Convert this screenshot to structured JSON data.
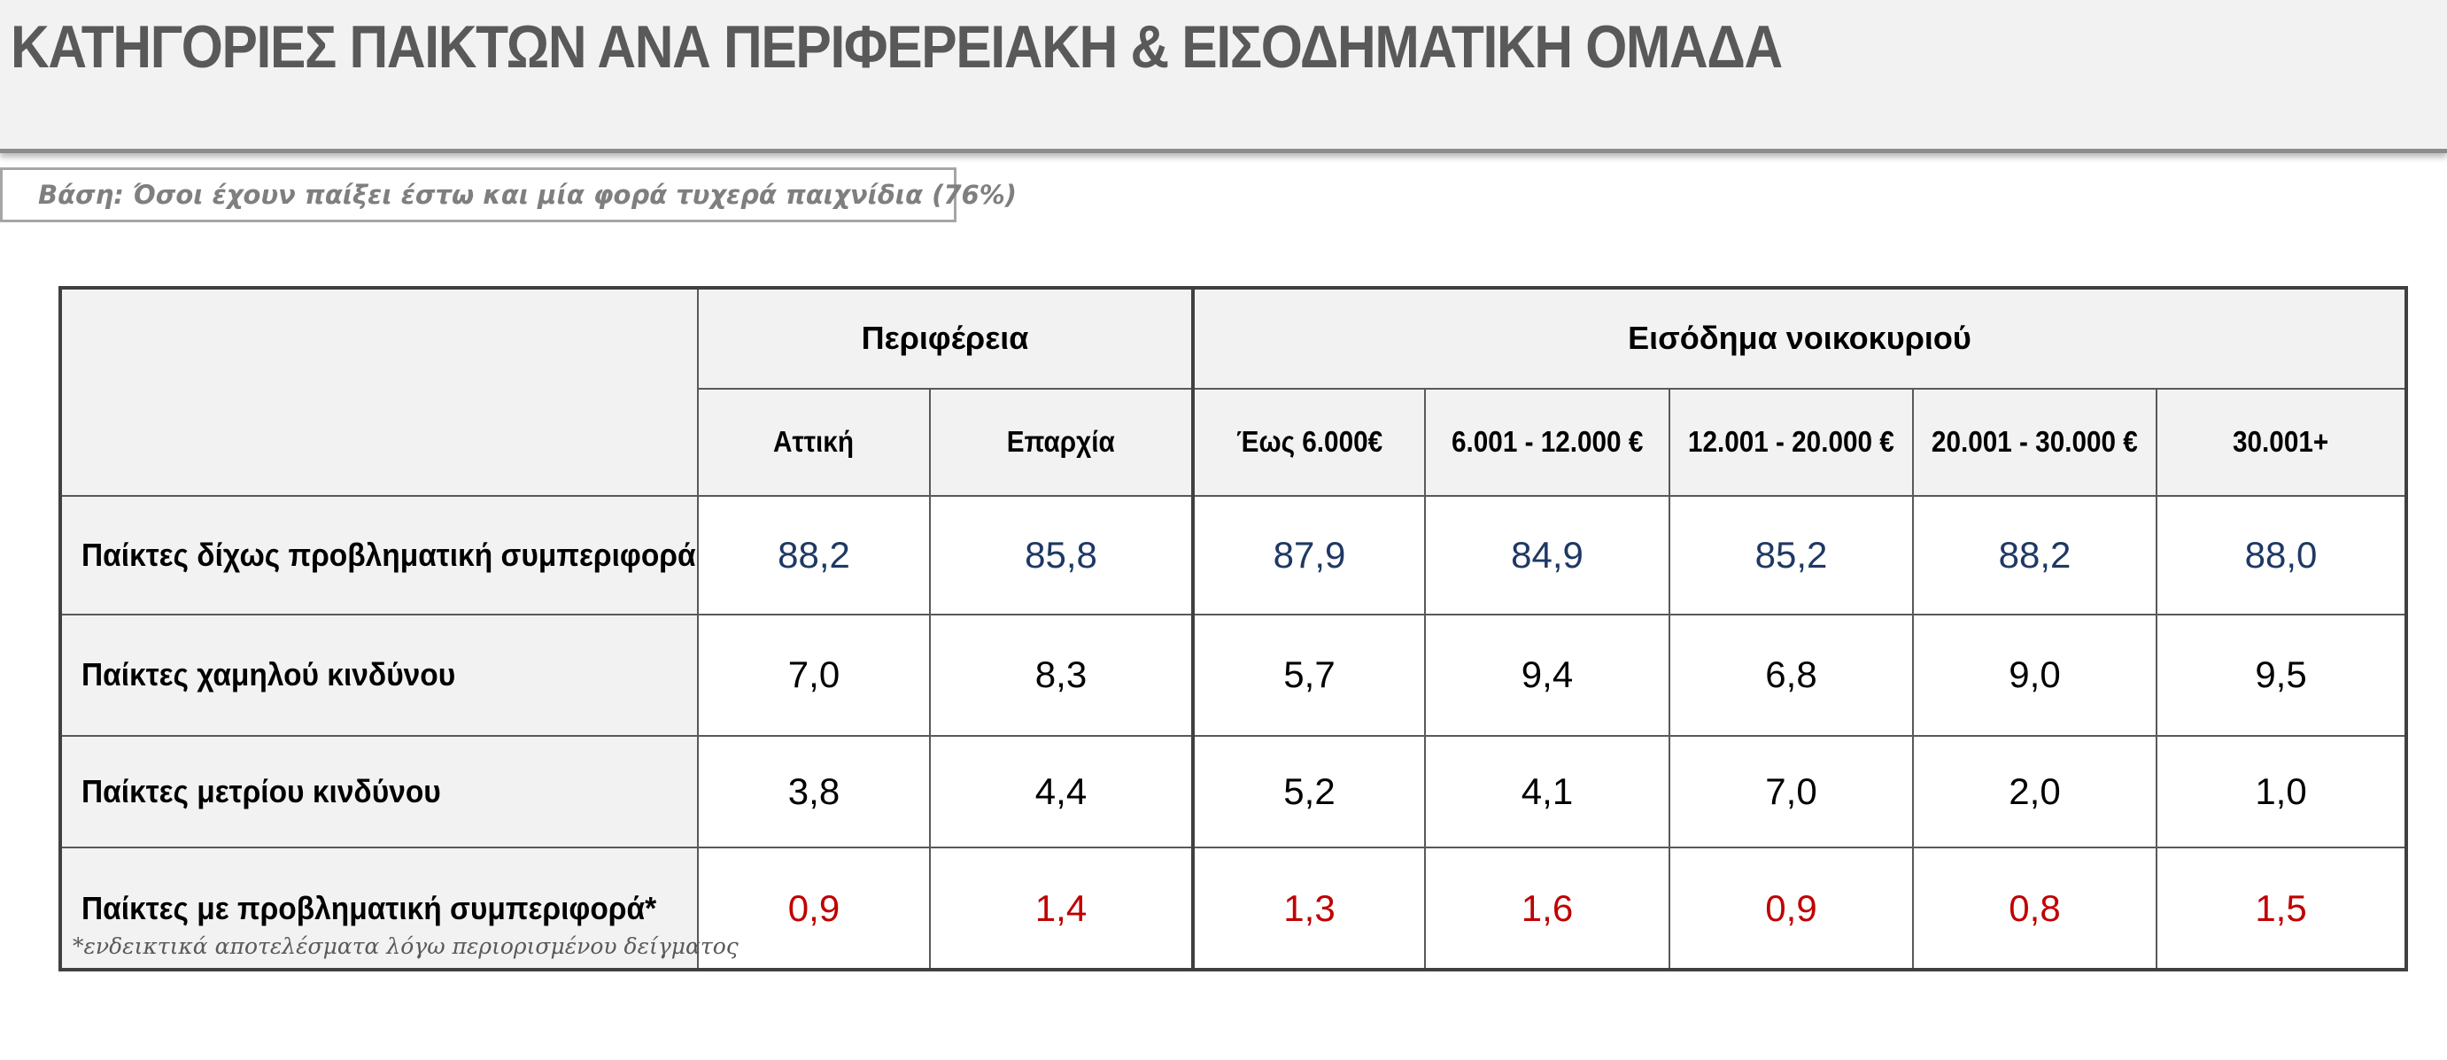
{
  "header": {
    "title": "ΚΑΤΗΓΟΡΙΕΣ ΠΑΙΚΤΩΝ ΑΝΑ ΠΕΡΙΦΕΡΕΙΑΚΗ & ΕΙΣΟΔΗΜΑΤΙΚΗ ΟΜΑΔΑ"
  },
  "base_note": "Βάση: Όσοι έχουν παίξει έστω και μία φορά τυχερά παιχνίδια (76%)",
  "table": {
    "groups": [
      "Περιφέρεια",
      "Εισόδημα νοικοκυριού"
    ],
    "columns": [
      "Αττική",
      "Επαρχία",
      "Έως 6.000€",
      "6.001 - 12.000 €",
      "12.001 - 20.000 €",
      "20.001 - 30.000 €",
      "30.001+"
    ],
    "rows": [
      {
        "label": "Παίκτες δίχως προβληματική συμπεριφορά",
        "values": [
          "88,2",
          "85,8",
          "87,9",
          "84,9",
          "85,2",
          "88,2",
          "88,0"
        ]
      },
      {
        "label": "Παίκτες χαμηλού κινδύνου",
        "values": [
          "7,0",
          "8,3",
          "5,7",
          "9,4",
          "6,8",
          "9,0",
          "9,5"
        ]
      },
      {
        "label": "Παίκτες μετρίου κινδύνου",
        "values": [
          "3,8",
          "4,4",
          "5,2",
          "4,1",
          "7,0",
          "2,0",
          "1,0"
        ]
      },
      {
        "label": "Παίκτες με προβληματική συμπεριφορά*",
        "values": [
          "0,9",
          "1,4",
          "1,3",
          "1,6",
          "0,9",
          "0,8",
          "1,5"
        ]
      }
    ],
    "footnote": "*ενδεικτικά αποτελέσματα λόγω περιορισμένου δείγματος"
  },
  "colors": {
    "row_no_problem": "#1f3864",
    "row_problem": "#c00000",
    "header_bg": "#f2f2f2"
  }
}
